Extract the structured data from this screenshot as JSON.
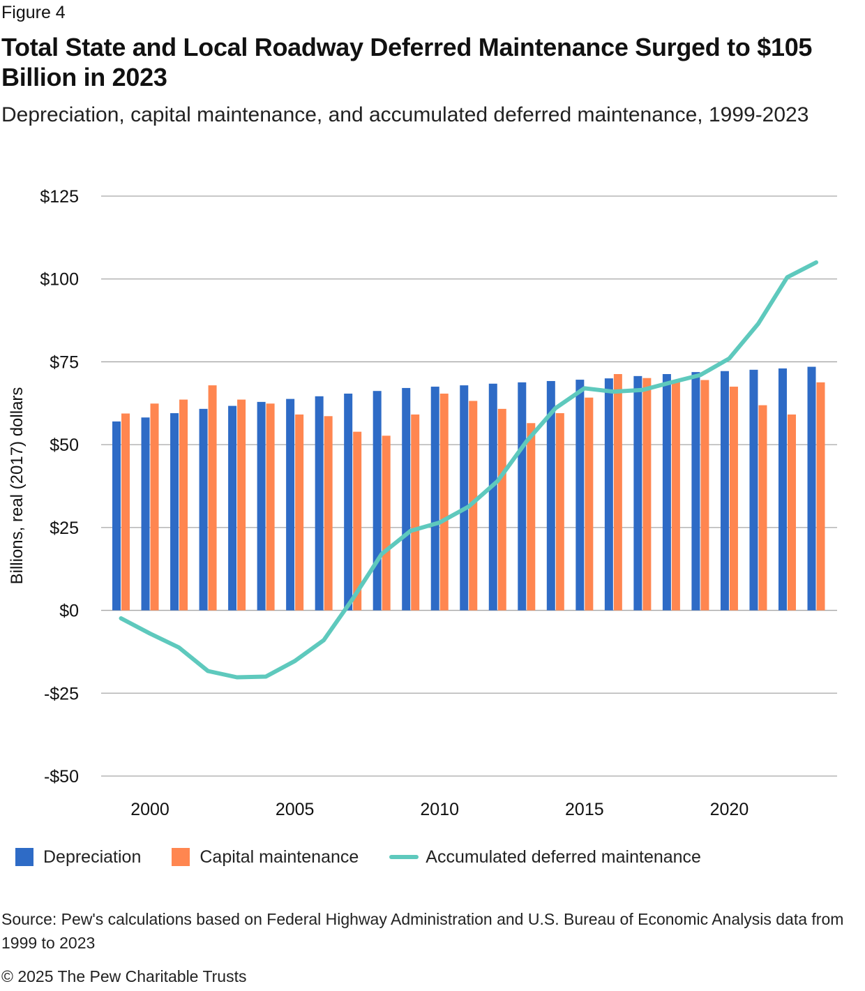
{
  "figure_label": "Figure 4",
  "title": "Total State and Local Roadway Deferred Maintenance Surged to $105 Billion in 2023",
  "subtitle": "Depreciation, capital maintenance, and accumulated deferred maintenance, 1999-2023",
  "source": "Source: Pew's calculations based on Federal Highway Administration and U.S. Bureau of Economic Analysis data from 1999 to 2023",
  "copyright": "© 2025 The Pew Charitable Trusts",
  "colors": {
    "depreciation": "#2e6bc6",
    "capital_maintenance": "#ff8650",
    "accumulated": "#5ec9bd",
    "grid": "#a6a6a6"
  },
  "legend": [
    {
      "label": "Depreciation",
      "kind": "box",
      "color": "#2e6bc6"
    },
    {
      "label": "Capital maintenance",
      "kind": "box",
      "color": "#ff8650"
    },
    {
      "label": "Accumulated deferred maintenance",
      "kind": "line",
      "color": "#5ec9bd"
    }
  ],
  "chart_data": {
    "type": "bar",
    "ylabel": "Billions, real (2017) dollars",
    "ylim": [
      -50,
      125
    ],
    "y_ticks": [
      125,
      100,
      75,
      50,
      25,
      0,
      -25,
      -50
    ],
    "y_tick_labels": [
      "$125",
      "$100",
      "$75",
      "$50",
      "$25",
      "$0",
      "-$25",
      "-$50"
    ],
    "x": [
      1999,
      2000,
      2001,
      2002,
      2003,
      2004,
      2005,
      2006,
      2007,
      2008,
      2009,
      2010,
      2011,
      2012,
      2013,
      2014,
      2015,
      2016,
      2017,
      2018,
      2019,
      2020,
      2021,
      2022,
      2023
    ],
    "x_tick_labels": [
      "2000",
      "2005",
      "2010",
      "2015",
      "2020"
    ],
    "x_tick_values": [
      2000,
      2005,
      2010,
      2015,
      2020
    ],
    "grid": true,
    "legend_position": "bottom",
    "series": [
      {
        "name": "Depreciation",
        "type": "bar",
        "values": [
          57.0,
          58.2,
          59.5,
          60.8,
          61.7,
          62.9,
          63.8,
          64.6,
          65.4,
          66.2,
          67.1,
          67.5,
          67.9,
          68.4,
          68.8,
          69.2,
          69.6,
          70.0,
          70.7,
          71.3,
          71.9,
          72.2,
          72.6,
          73.0,
          73.5
        ]
      },
      {
        "name": "Capital maintenance",
        "type": "bar",
        "values": [
          59.4,
          62.4,
          63.6,
          67.9,
          63.6,
          62.4,
          59.1,
          58.6,
          53.9,
          52.7,
          59.1,
          65.4,
          63.2,
          60.8,
          56.5,
          59.5,
          64.2,
          71.3,
          70.1,
          69.2,
          69.5,
          67.5,
          61.9,
          59.1,
          68.8
        ]
      },
      {
        "name": "Accumulated deferred maintenance",
        "type": "line",
        "values": [
          -2.4,
          -7.0,
          -11.2,
          -18.3,
          -20.2,
          -20.0,
          -15.3,
          -9.0,
          3.5,
          17.0,
          24.0,
          26.5,
          31.3,
          39.0,
          51.0,
          61.0,
          67.0,
          66.0,
          66.5,
          68.8,
          71.0,
          76.0,
          86.5,
          100.5,
          105.0
        ]
      }
    ]
  }
}
